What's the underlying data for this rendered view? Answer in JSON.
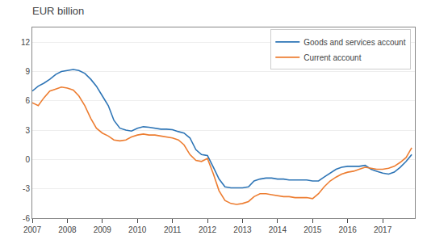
{
  "chart_data": {
    "type": "line",
    "title": "EUR billion",
    "x": [
      2007.0,
      2007.17,
      2007.33,
      2007.5,
      2007.67,
      2007.83,
      2008.0,
      2008.17,
      2008.33,
      2008.5,
      2008.67,
      2008.83,
      2009.0,
      2009.17,
      2009.33,
      2009.5,
      2009.67,
      2009.83,
      2010.0,
      2010.17,
      2010.33,
      2010.5,
      2010.67,
      2010.83,
      2011.0,
      2011.17,
      2011.33,
      2011.5,
      2011.67,
      2011.83,
      2012.0,
      2012.17,
      2012.33,
      2012.5,
      2012.67,
      2012.83,
      2013.0,
      2013.17,
      2013.33,
      2013.5,
      2013.67,
      2013.83,
      2014.0,
      2014.17,
      2014.33,
      2014.5,
      2014.67,
      2014.83,
      2015.0,
      2015.17,
      2015.33,
      2015.5,
      2015.67,
      2015.83,
      2016.0,
      2016.17,
      2016.33,
      2016.5,
      2016.67,
      2016.83,
      2017.0,
      2017.17,
      2017.33,
      2017.5,
      2017.67,
      2017.83
    ],
    "series": [
      {
        "name": "Goods and services account",
        "color": "#2e75b6",
        "values": [
          7.0,
          7.5,
          7.8,
          8.2,
          8.7,
          9.0,
          9.1,
          9.2,
          9.1,
          8.8,
          8.2,
          7.5,
          6.5,
          5.5,
          4.0,
          3.2,
          3.0,
          2.9,
          3.2,
          3.35,
          3.3,
          3.2,
          3.1,
          3.1,
          3.05,
          2.85,
          2.7,
          2.2,
          1.0,
          0.5,
          0.4,
          -0.8,
          -2.0,
          -2.8,
          -2.9,
          -2.9,
          -2.9,
          -2.8,
          -2.2,
          -2.0,
          -1.9,
          -1.9,
          -2.0,
          -2.0,
          -2.1,
          -2.1,
          -2.1,
          -2.1,
          -2.2,
          -2.2,
          -1.8,
          -1.4,
          -1.0,
          -0.8,
          -0.7,
          -0.7,
          -0.7,
          -0.6,
          -1.0,
          -1.2,
          -1.4,
          -1.5,
          -1.3,
          -0.8,
          -0.2,
          0.5
        ]
      },
      {
        "name": "Current account",
        "color": "#ed7d31",
        "values": [
          5.8,
          5.5,
          6.3,
          7.0,
          7.2,
          7.4,
          7.3,
          7.1,
          6.5,
          5.5,
          4.2,
          3.2,
          2.7,
          2.4,
          2.0,
          1.9,
          2.0,
          2.3,
          2.5,
          2.6,
          2.5,
          2.5,
          2.4,
          2.3,
          2.2,
          2.0,
          1.5,
          0.5,
          -0.1,
          -0.2,
          0.1,
          -1.5,
          -3.2,
          -4.2,
          -4.5,
          -4.6,
          -4.5,
          -4.3,
          -3.8,
          -3.5,
          -3.5,
          -3.6,
          -3.7,
          -3.8,
          -3.8,
          -3.9,
          -3.9,
          -3.9,
          -4.0,
          -3.5,
          -2.8,
          -2.2,
          -1.8,
          -1.5,
          -1.3,
          -1.2,
          -1.0,
          -0.8,
          -0.9,
          -1.0,
          -1.0,
          -0.9,
          -0.7,
          -0.3,
          0.2,
          1.2
        ]
      }
    ],
    "xlim": [
      2007,
      2017.92
    ],
    "xticks": [
      2007,
      2008,
      2009,
      2010,
      2011,
      2012,
      2013,
      2014,
      2015,
      2016,
      2017
    ],
    "ylim": [
      -6,
      13.5
    ],
    "yticks": [
      -6,
      -3,
      0,
      3,
      6,
      9,
      12
    ],
    "grid": "y",
    "legend": "upper right"
  }
}
